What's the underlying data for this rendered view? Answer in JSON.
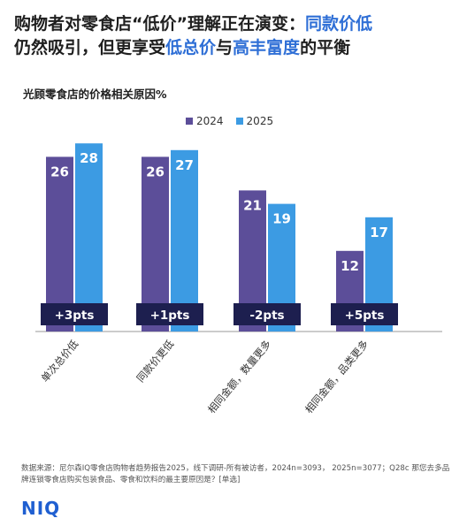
{
  "headline": {
    "line1_a": "购物者对零食店“低价”理解正在演变：",
    "line1_b": "同款价低",
    "line2_a": "仍然吸引，但更享受",
    "line2_b": "低总价",
    "line2_c": "与",
    "line2_d": "高丰富度",
    "line2_e": "的平衡"
  },
  "colors": {
    "s2024": "#5c4e99",
    "s2025": "#3c9be3",
    "pill": "#1d1f4f",
    "highlight": "#2f6fd6"
  },
  "chart_data": {
    "type": "bar",
    "title": "光顾零食店的价格相关原因%",
    "categories": [
      "单次总价低",
      "同款价更低",
      "相同金额，数量更多",
      "相同金额，品类更多"
    ],
    "series": [
      {
        "name": "2024",
        "values": [
          26,
          26,
          21,
          12
        ]
      },
      {
        "name": "2025",
        "values": [
          28,
          27,
          19,
          17
        ]
      }
    ],
    "changes": [
      "+3pts",
      "+1pts",
      "-2pts",
      "+5pts"
    ],
    "ylim": [
      0,
      30
    ],
    "grid": false,
    "legend": "top-center"
  },
  "footnote": "数据来源：尼尔森IQ零食店购物者趋势报告2025，线下调研-所有被访者，2024n=3093， 2025n=3077；Q28c 那您去多品牌连锁零食店购买包装食品、零食和饮料的最主要原因是？[单选]",
  "logo": "NIQ"
}
